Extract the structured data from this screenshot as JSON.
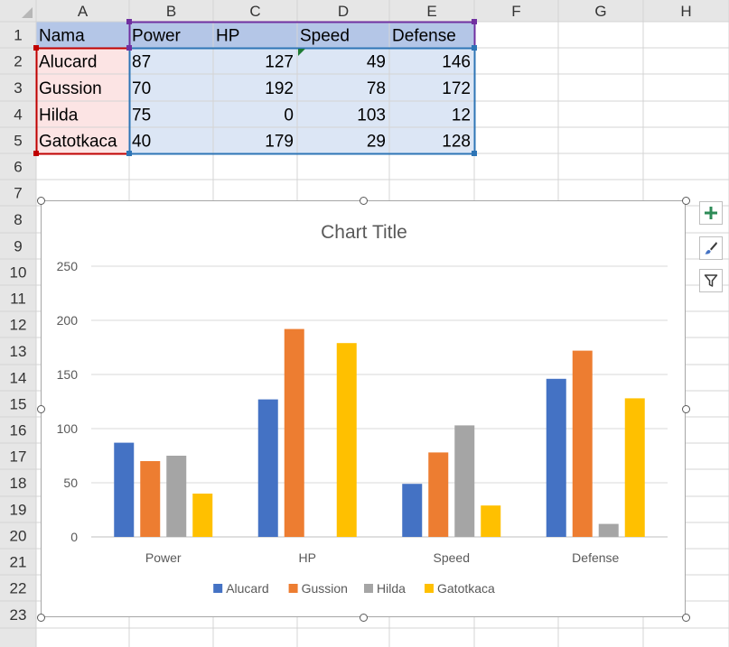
{
  "spreadsheet": {
    "columns": [
      "A",
      "B",
      "C",
      "D",
      "E",
      "F",
      "G",
      "H"
    ],
    "rows": [
      "1",
      "2",
      "3",
      "4",
      "5",
      "6",
      "7",
      "8",
      "9",
      "10",
      "11",
      "12",
      "13",
      "14",
      "15",
      "16",
      "17",
      "18",
      "19",
      "20",
      "21",
      "22",
      "23"
    ],
    "cells": [
      [
        "Nama",
        "Power",
        "HP",
        "Speed",
        "Defense"
      ],
      [
        "Alucard",
        "87",
        "127",
        "49",
        "146"
      ],
      [
        "Gussion",
        "70",
        "192",
        "78",
        "172"
      ],
      [
        "Hilda",
        "75",
        "0",
        "103",
        "12"
      ],
      [
        "Gatotkaca",
        "40",
        "179",
        "29",
        "128"
      ]
    ]
  },
  "chart_data": {
    "type": "bar",
    "title": "Chart Title",
    "categories": [
      "Power",
      "HP",
      "Speed",
      "Defense"
    ],
    "series": [
      {
        "name": "Alucard",
        "values": [
          87,
          127,
          49,
          146
        ],
        "color": "#4472c4"
      },
      {
        "name": "Gussion",
        "values": [
          70,
          192,
          78,
          172
        ],
        "color": "#ed7d31"
      },
      {
        "name": "Hilda",
        "values": [
          75,
          0,
          103,
          12
        ],
        "color": "#a5a5a5"
      },
      {
        "name": "Gatotkaca",
        "values": [
          40,
          179,
          29,
          128
        ],
        "color": "#ffc000"
      }
    ],
    "yticks": [
      "0",
      "50",
      "100",
      "150",
      "200",
      "250"
    ],
    "ylim": [
      0,
      250
    ],
    "grid": true,
    "legend": "bottom"
  },
  "chart_tools": {
    "elements_icon": "plus-icon",
    "styles_icon": "brush-icon",
    "filters_icon": "filter-icon"
  },
  "colors": {
    "header_bg": "#e6e6e6",
    "gridline": "#d4d4d4",
    "range_blue": "#2e75b6",
    "range_red": "#c00000",
    "range_purple": "#7030a0"
  }
}
